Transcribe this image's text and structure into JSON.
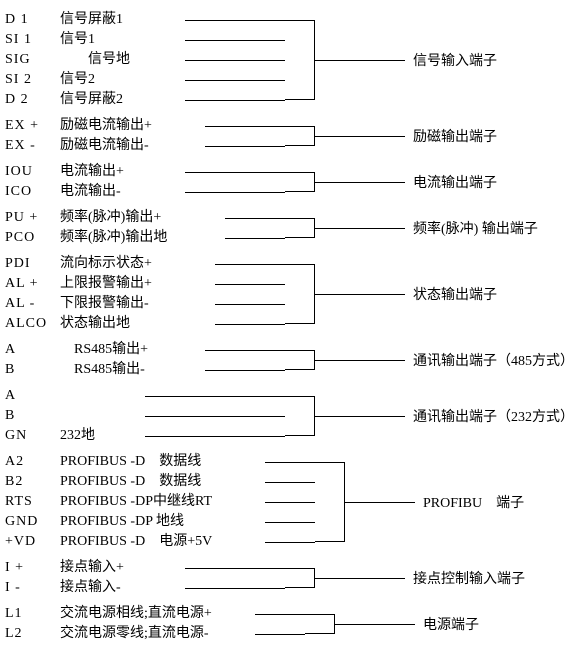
{
  "groups": [
    {
      "label": "信号输入端子",
      "rows": [
        {
          "code": "D 1",
          "desc": "信号屏蔽1"
        },
        {
          "code": "SI 1",
          "desc": "信号1"
        },
        {
          "code": "SIG",
          "desc": "　　信号地"
        },
        {
          "code": "SI 2",
          "desc": "信号2"
        },
        {
          "code": "D 2",
          "desc": "信号屏蔽2"
        }
      ],
      "hstart": 180,
      "bstart": 280,
      "bwidth": 30,
      "lstart": 320,
      "lend": 400
    },
    {
      "label": "励磁输出端子",
      "rows": [
        {
          "code": "EX +",
          "desc": "励磁电流输出+"
        },
        {
          "code": "EX -",
          "desc": "励磁电流输出-"
        }
      ],
      "hstart": 200,
      "bstart": 280,
      "bwidth": 30,
      "lstart": 320,
      "lend": 400
    },
    {
      "label": "电流输出端子",
      "rows": [
        {
          "code": "IOU",
          "desc": "电流输出+"
        },
        {
          "code": "ICO",
          "desc": "电流输出-"
        }
      ],
      "hstart": 180,
      "bstart": 280,
      "bwidth": 30,
      "lstart": 320,
      "lend": 400
    },
    {
      "label": "频率(脉冲) 输出端子",
      "rows": [
        {
          "code": "PU +",
          "desc": "频率(脉冲)输出+"
        },
        {
          "code": "PCO",
          "desc": "频率(脉冲)输出地"
        }
      ],
      "hstart": 220,
      "bstart": 280,
      "bwidth": 30,
      "lstart": 320,
      "lend": 400
    },
    {
      "label": "状态输出端子",
      "rows": [
        {
          "code": "PDI",
          "desc": "流向标示状态+"
        },
        {
          "code": "AL +",
          "desc": "上限报警输出+"
        },
        {
          "code": "AL -",
          "desc": "下限报警输出-"
        },
        {
          "code": "ALCO",
          "desc": "状态输出地"
        }
      ],
      "hstart": 210,
      "bstart": 280,
      "bwidth": 30,
      "lstart": 320,
      "lend": 400
    },
    {
      "label": "通讯输出端子（485方式）",
      "rows": [
        {
          "code": "A",
          "desc": "　RS485输出+"
        },
        {
          "code": "B",
          "desc": "　RS485输出-"
        }
      ],
      "hstart": 200,
      "bstart": 280,
      "bwidth": 30,
      "lstart": 320,
      "lend": 400
    },
    {
      "label": "通讯输出端子（232方式）",
      "rows": [
        {
          "code": "A",
          "desc": ""
        },
        {
          "code": "B",
          "desc": ""
        },
        {
          "code": "GN",
          "desc": "232地"
        }
      ],
      "hstart": 140,
      "bstart": 280,
      "bwidth": 30,
      "lstart": 320,
      "lend": 400
    },
    {
      "label": "PROFIBU　端子",
      "rows": [
        {
          "code": "A2",
          "desc": "PROFIBUS -D　数据线"
        },
        {
          "code": "B2",
          "desc": "PROFIBUS -D　数据线"
        },
        {
          "code": "RTS",
          "desc": "PROFIBUS -DP中继线RT"
        },
        {
          "code": "GND",
          "desc": "PROFIBUS -DP 地线"
        },
        {
          "code": "+VD",
          "desc": "PROFIBUS -D　电源+5V"
        }
      ],
      "hstart": 260,
      "bstart": 310,
      "bwidth": 30,
      "lstart": 350,
      "lend": 410
    },
    {
      "label": "接点控制输入端子",
      "rows": [
        {
          "code": "I +",
          "desc": "接点输入+"
        },
        {
          "code": "I -",
          "desc": "接点输入-"
        }
      ],
      "hstart": 180,
      "bstart": 280,
      "bwidth": 30,
      "lstart": 320,
      "lend": 400
    },
    {
      "label": "电源端子",
      "rows": [
        {
          "code": "L1",
          "desc": "交流电源相线;直流电源+"
        },
        {
          "code": "L2",
          "desc": "交流电源零线;直流电源-"
        }
      ],
      "hstart": 250,
      "bstart": 300,
      "bwidth": 30,
      "lstart": 340,
      "lend": 410
    }
  ]
}
